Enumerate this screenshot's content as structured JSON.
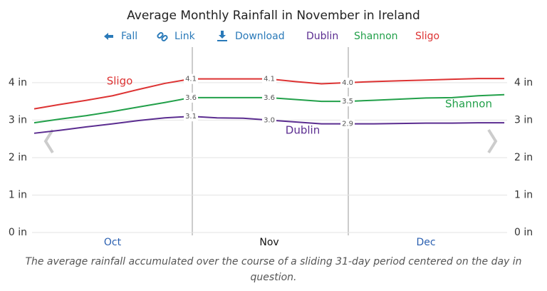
{
  "chart_data": {
    "type": "line",
    "title": "Average Monthly Rainfall in November in Ireland",
    "buttons": [
      "Fall",
      "Link",
      "Download"
    ],
    "caption": "The average rainfall accumulated over the course of a sliding 31-day period centered on the day in question.",
    "categories": [
      null,
      null,
      null,
      "Oct",
      null,
      null,
      null,
      null,
      null,
      "Nov",
      null,
      null,
      null,
      null,
      null,
      "Dec",
      null,
      null,
      null
    ],
    "series": [
      {
        "name": "Dublin",
        "color": "#5b2d90",
        "values": [
          2.65,
          2.73,
          2.82,
          2.9,
          2.99,
          3.06,
          3.1,
          3.06,
          3.05,
          3.0,
          2.95,
          2.9,
          2.9,
          2.9,
          2.91,
          2.92,
          2.92,
          2.93,
          2.93
        ],
        "value_labels": [
          null,
          null,
          null,
          null,
          null,
          null,
          "3.1",
          null,
          null,
          "3.0",
          null,
          null,
          "2.9",
          null,
          null,
          null,
          null,
          null,
          null
        ]
      },
      {
        "name": "Shannon",
        "color": "#22a04a",
        "values": [
          2.93,
          3.03,
          3.12,
          3.23,
          3.35,
          3.47,
          3.6,
          3.6,
          3.6,
          3.6,
          3.55,
          3.5,
          3.5,
          3.53,
          3.56,
          3.59,
          3.6,
          3.65,
          3.68
        ],
        "value_labels": [
          null,
          null,
          null,
          null,
          null,
          null,
          "3.6",
          null,
          null,
          "3.6",
          null,
          null,
          "3.5",
          null,
          null,
          null,
          null,
          null,
          null
        ]
      },
      {
        "name": "Sligo",
        "color": "#dd3333",
        "values": [
          3.3,
          3.42,
          3.53,
          3.65,
          3.82,
          3.98,
          4.1,
          4.1,
          4.1,
          4.1,
          4.03,
          3.97,
          4.0,
          4.03,
          4.05,
          4.07,
          4.09,
          4.11,
          4.11
        ],
        "value_labels": [
          null,
          null,
          null,
          null,
          null,
          null,
          "4.1",
          null,
          null,
          "4.1",
          null,
          null,
          "4.0",
          null,
          null,
          null,
          null,
          null,
          null
        ]
      }
    ],
    "ylim": [
      0,
      4.95
    ],
    "yticks": [
      {
        "value": 0,
        "label": "0 in"
      },
      {
        "value": 1,
        "label": "1 in"
      },
      {
        "value": 2,
        "label": "2 in"
      },
      {
        "value": 3,
        "label": "3 in"
      },
      {
        "value": 4,
        "label": "4 in"
      }
    ],
    "grid": true
  }
}
